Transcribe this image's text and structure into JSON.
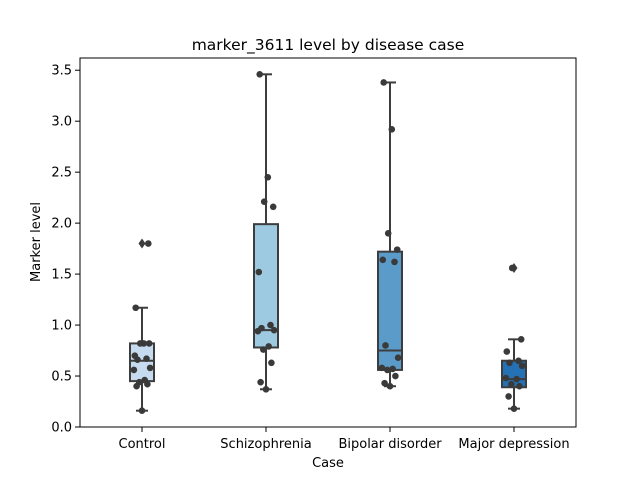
{
  "chart_data": {
    "type": "box",
    "title": "marker_3611 level by disease case",
    "xlabel": "Case",
    "ylabel": "Marker level",
    "ylim": [
      0,
      3.62
    ],
    "yticks": [
      "0.0",
      "0.5",
      "1.0",
      "1.5",
      "2.0",
      "2.5",
      "3.0",
      "3.5"
    ],
    "grid": false,
    "categories": [
      "Control",
      "Schizophrenia",
      "Bipolar disorder",
      "Major depression"
    ],
    "colors": [
      "#c6dbef",
      "#9ecae1",
      "#5a9bc9",
      "#2471b5"
    ],
    "point_color": "#3a3a3a",
    "boxes": [
      {
        "q1": 0.45,
        "median": 0.65,
        "q3": 0.82,
        "whisker_low": 0.16,
        "whisker_high": 1.17,
        "outliers": [
          1.8
        ],
        "points": [
          0.16,
          0.4,
          0.42,
          0.44,
          0.46,
          0.56,
          0.58,
          0.66,
          0.67,
          0.7,
          0.82,
          0.82,
          0.82,
          1.17,
          1.8
        ]
      },
      {
        "q1": 0.78,
        "median": 0.95,
        "q3": 1.99,
        "whisker_low": 0.37,
        "whisker_high": 3.46,
        "outliers": [],
        "points": [
          0.37,
          0.44,
          0.63,
          0.76,
          0.79,
          0.94,
          0.95,
          0.97,
          1.0,
          1.52,
          2.16,
          2.21,
          2.45,
          3.46
        ]
      },
      {
        "q1": 0.56,
        "median": 0.75,
        "q3": 1.72,
        "whisker_low": 0.4,
        "whisker_high": 3.38,
        "outliers": [],
        "points": [
          0.4,
          0.43,
          0.5,
          0.56,
          0.57,
          0.58,
          0.68,
          0.8,
          1.62,
          1.64,
          1.74,
          1.9,
          2.92,
          3.38
        ]
      },
      {
        "q1": 0.39,
        "median": 0.47,
        "q3": 0.65,
        "whisker_low": 0.18,
        "whisker_high": 0.86,
        "outliers": [
          1.56
        ],
        "points": [
          0.18,
          0.3,
          0.4,
          0.42,
          0.47,
          0.48,
          0.6,
          0.63,
          0.65,
          0.74,
          0.86,
          1.56
        ]
      }
    ]
  }
}
